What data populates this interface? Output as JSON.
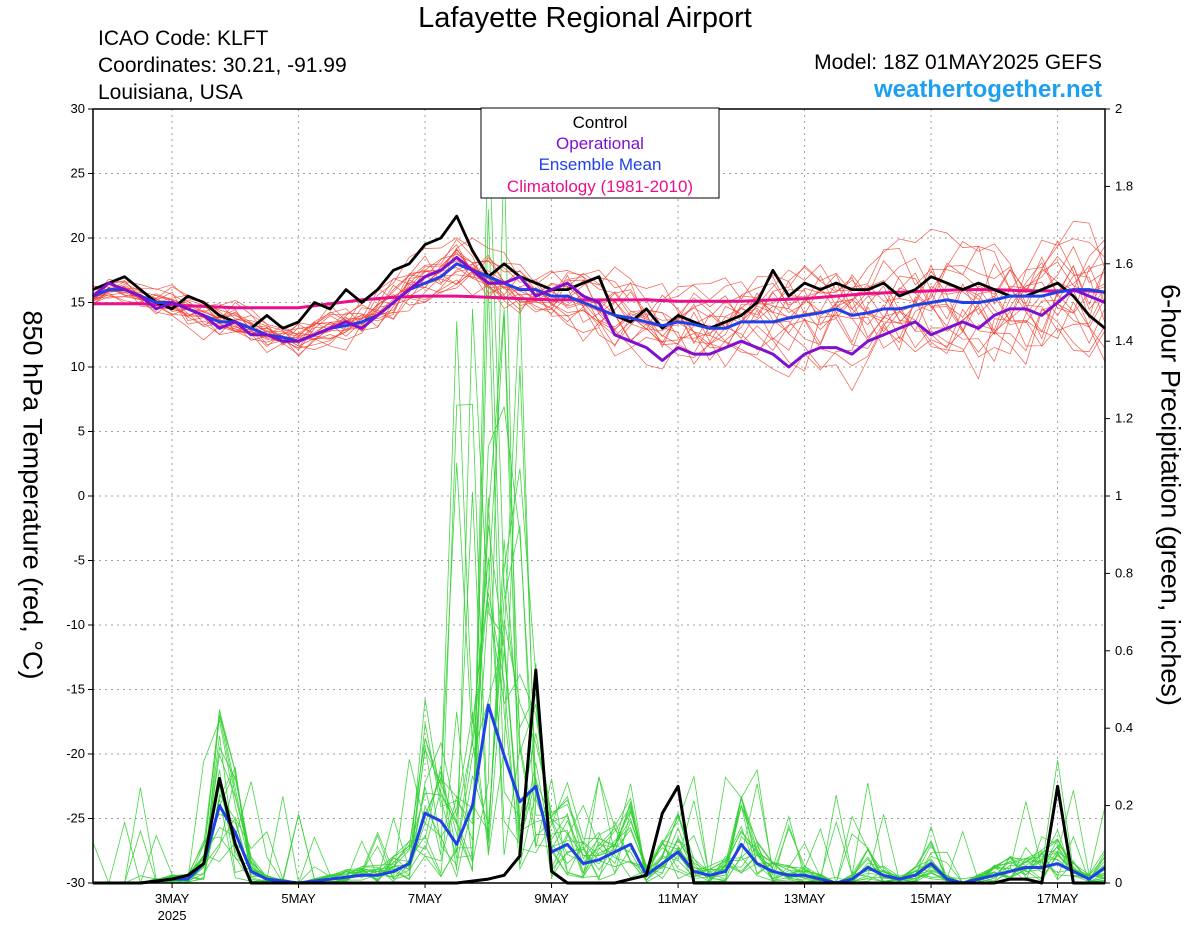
{
  "header": {
    "title": "Lafayette Regional Airport",
    "icao": "ICAO Code: KLFT",
    "coords": "Coordinates: 30.21, -91.99",
    "location": "Louisiana, USA",
    "model": "Model: 18Z 01MAY2025 GEFS",
    "site": "weathertogether.net"
  },
  "colors": {
    "members_temp": "#f04030",
    "members_precip": "#33d033",
    "control": "#000000",
    "operational": "#8010d0",
    "mean": "#2040e8",
    "climatology": "#e8108c",
    "site": "#1e9ff0"
  },
  "chart_data": {
    "type": "line",
    "title": "Lafayette Regional Airport",
    "ylabel": "850 hPa Temperature (red, °C)",
    "y2label": "6-hour Precipitation (green, inches)",
    "ylim": [
      -30,
      30
    ],
    "y2lim": [
      0,
      2
    ],
    "xlim": [
      1.75,
      17.75
    ],
    "grid": true,
    "yticks": [
      "30",
      "25",
      "20",
      "15",
      "10",
      "5",
      "0",
      "-5",
      "-10",
      "-15",
      "-20",
      "-25",
      "-30"
    ],
    "y2ticks": [
      "2",
      "1.8",
      "1.6",
      "1.4",
      "1.2",
      "1",
      "0.8",
      "0.6",
      "0.4",
      "0.2",
      "0"
    ],
    "xticks": [
      {
        "x": 3,
        "label": "3MAY",
        "sub": "2025"
      },
      {
        "x": 5,
        "label": "5MAY",
        "sub": ""
      },
      {
        "x": 7,
        "label": "7MAY",
        "sub": ""
      },
      {
        "x": 9,
        "label": "9MAY",
        "sub": ""
      },
      {
        "x": 11,
        "label": "11MAY",
        "sub": ""
      },
      {
        "x": 13,
        "label": "13MAY",
        "sub": ""
      },
      {
        "x": 15,
        "label": "15MAY",
        "sub": ""
      },
      {
        "x": 17,
        "label": "17MAY",
        "sub": ""
      }
    ],
    "legend": {
      "placement": "top-center",
      "entries": [
        {
          "name": "Control",
          "color": "#000000"
        },
        {
          "name": "Operational",
          "color": "#8010d0"
        },
        {
          "name": "Ensemble Mean",
          "color": "#2040e8"
        },
        {
          "name": "Climatology (1981-2010)",
          "color": "#e8108c"
        }
      ]
    },
    "temperature": {
      "control": [
        [
          1.75,
          16
        ],
        [
          2,
          16.5
        ],
        [
          2.25,
          17
        ],
        [
          2.5,
          16
        ],
        [
          2.75,
          15
        ],
        [
          3,
          14.5
        ],
        [
          3.25,
          15.5
        ],
        [
          3.5,
          15
        ],
        [
          3.75,
          14
        ],
        [
          4,
          13.5
        ],
        [
          4.25,
          13
        ],
        [
          4.5,
          14
        ],
        [
          4.75,
          13
        ],
        [
          5,
          13.5
        ],
        [
          5.25,
          15
        ],
        [
          5.5,
          14.5
        ],
        [
          5.75,
          16
        ],
        [
          6,
          15
        ],
        [
          6.25,
          16
        ],
        [
          6.5,
          17.5
        ],
        [
          6.75,
          18
        ],
        [
          7,
          19.5
        ],
        [
          7.25,
          20
        ],
        [
          7.5,
          21.7
        ],
        [
          7.75,
          19
        ],
        [
          8,
          17
        ],
        [
          8.25,
          18
        ],
        [
          8.5,
          17
        ],
        [
          8.75,
          16.5
        ],
        [
          9,
          16
        ],
        [
          9.25,
          16
        ],
        [
          9.5,
          16.5
        ],
        [
          9.75,
          17
        ],
        [
          10,
          14
        ],
        [
          10.25,
          13.5
        ],
        [
          10.5,
          14.5
        ],
        [
          10.75,
          13
        ],
        [
          11,
          14
        ],
        [
          11.25,
          13.5
        ],
        [
          11.5,
          13
        ],
        [
          11.75,
          13.5
        ],
        [
          12,
          14
        ],
        [
          12.25,
          15
        ],
        [
          12.5,
          17.5
        ],
        [
          12.75,
          15.5
        ],
        [
          13,
          16.5
        ],
        [
          13.25,
          16
        ],
        [
          13.5,
          16.5
        ],
        [
          13.75,
          16
        ],
        [
          14,
          16
        ],
        [
          14.25,
          16.5
        ],
        [
          14.5,
          15.5
        ],
        [
          14.75,
          16
        ],
        [
          15,
          17
        ],
        [
          15.25,
          16.5
        ],
        [
          15.5,
          16
        ],
        [
          15.75,
          16.5
        ],
        [
          16,
          16
        ],
        [
          16.25,
          15.5
        ],
        [
          16.5,
          15.5
        ],
        [
          16.75,
          16
        ],
        [
          17,
          16.5
        ],
        [
          17.25,
          15.5
        ],
        [
          17.5,
          14
        ],
        [
          17.75,
          13
        ]
      ],
      "operational": [
        [
          1.75,
          15.5
        ],
        [
          2,
          16.5
        ],
        [
          2.25,
          16
        ],
        [
          2.5,
          15.5
        ],
        [
          2.75,
          14.5
        ],
        [
          3,
          15
        ],
        [
          3.25,
          14.5
        ],
        [
          3.5,
          14
        ],
        [
          3.75,
          13
        ],
        [
          4,
          13.5
        ],
        [
          4.25,
          12.5
        ],
        [
          4.5,
          12.5
        ],
        [
          4.75,
          12
        ],
        [
          5,
          12
        ],
        [
          5.25,
          12.5
        ],
        [
          5.5,
          13
        ],
        [
          5.75,
          13.5
        ],
        [
          6,
          13
        ],
        [
          6.25,
          14
        ],
        [
          6.5,
          15
        ],
        [
          6.75,
          16
        ],
        [
          7,
          17
        ],
        [
          7.25,
          17.5
        ],
        [
          7.5,
          18.5
        ],
        [
          7.75,
          17.5
        ],
        [
          8,
          16.5
        ],
        [
          8.25,
          16.5
        ],
        [
          8.5,
          17
        ],
        [
          8.75,
          15.5
        ],
        [
          9,
          16
        ],
        [
          9.25,
          16.5
        ],
        [
          9.5,
          15.5
        ],
        [
          9.75,
          15
        ],
        [
          10,
          12.5
        ],
        [
          10.25,
          12
        ],
        [
          10.5,
          11.5
        ],
        [
          10.75,
          10.5
        ],
        [
          11,
          11.5
        ],
        [
          11.25,
          11
        ],
        [
          11.5,
          11
        ],
        [
          11.75,
          11.5
        ],
        [
          12,
          12
        ],
        [
          12.25,
          11.5
        ],
        [
          12.5,
          11
        ],
        [
          12.75,
          10
        ],
        [
          13,
          11
        ],
        [
          13.25,
          11.5
        ],
        [
          13.5,
          11.5
        ],
        [
          13.75,
          11
        ],
        [
          14,
          12
        ],
        [
          14.25,
          12.5
        ],
        [
          14.5,
          13
        ],
        [
          14.75,
          13.5
        ],
        [
          15,
          12.5
        ],
        [
          15.25,
          13
        ],
        [
          15.5,
          13.5
        ],
        [
          15.75,
          13
        ],
        [
          16,
          14
        ],
        [
          16.25,
          14.5
        ],
        [
          16.5,
          14.5
        ],
        [
          16.75,
          14
        ],
        [
          17,
          15
        ],
        [
          17.25,
          16
        ],
        [
          17.5,
          15.5
        ],
        [
          17.75,
          15
        ]
      ],
      "mean": [
        [
          1.75,
          15.5
        ],
        [
          2,
          16
        ],
        [
          2.25,
          16
        ],
        [
          2.5,
          15.5
        ],
        [
          2.75,
          15
        ],
        [
          3,
          15
        ],
        [
          3.25,
          14.5
        ],
        [
          3.5,
          14
        ],
        [
          3.75,
          13.5
        ],
        [
          4,
          13.5
        ],
        [
          4.25,
          13
        ],
        [
          4.5,
          12.5
        ],
        [
          4.75,
          12.3
        ],
        [
          5,
          12
        ],
        [
          5.25,
          12.5
        ],
        [
          5.5,
          13
        ],
        [
          5.75,
          13.2
        ],
        [
          6,
          13.5
        ],
        [
          6.25,
          14
        ],
        [
          6.5,
          15
        ],
        [
          6.75,
          16
        ],
        [
          7,
          16.5
        ],
        [
          7.25,
          17
        ],
        [
          7.5,
          18
        ],
        [
          7.75,
          17.5
        ],
        [
          8,
          17
        ],
        [
          8.25,
          16.5
        ],
        [
          8.5,
          16
        ],
        [
          8.75,
          16
        ],
        [
          9,
          15.5
        ],
        [
          9.25,
          15.5
        ],
        [
          9.5,
          15
        ],
        [
          9.75,
          14.5
        ],
        [
          10,
          14
        ],
        [
          10.25,
          13.8
        ],
        [
          10.5,
          13.5
        ],
        [
          10.75,
          13.2
        ],
        [
          11,
          13.5
        ],
        [
          11.25,
          13.3
        ],
        [
          11.5,
          13
        ],
        [
          11.75,
          13
        ],
        [
          12,
          13.5
        ],
        [
          12.25,
          13.5
        ],
        [
          12.5,
          13.5
        ],
        [
          12.75,
          13.8
        ],
        [
          13,
          14
        ],
        [
          13.25,
          14.2
        ],
        [
          13.5,
          14.5
        ],
        [
          13.75,
          14
        ],
        [
          14,
          14.2
        ],
        [
          14.25,
          14.5
        ],
        [
          14.5,
          14.5
        ],
        [
          14.75,
          14.8
        ],
        [
          15,
          15
        ],
        [
          15.25,
          15.2
        ],
        [
          15.5,
          15
        ],
        [
          15.75,
          15
        ],
        [
          16,
          15.2
        ],
        [
          16.25,
          15.5
        ],
        [
          16.5,
          15.5
        ],
        [
          16.75,
          15.5
        ],
        [
          17,
          15.8
        ],
        [
          17.25,
          16
        ],
        [
          17.5,
          16
        ],
        [
          17.75,
          15.8
        ]
      ],
      "climatology": [
        [
          1.75,
          14.9
        ],
        [
          2.5,
          14.9
        ],
        [
          3,
          14.8
        ],
        [
          3.5,
          14.7
        ],
        [
          4,
          14.6
        ],
        [
          4.5,
          14.6
        ],
        [
          5,
          14.6
        ],
        [
          5.5,
          14.9
        ],
        [
          6,
          15.2
        ],
        [
          6.5,
          15.4
        ],
        [
          7,
          15.5
        ],
        [
          7.5,
          15.5
        ],
        [
          8,
          15.4
        ],
        [
          8.5,
          15.3
        ],
        [
          9,
          15.2
        ],
        [
          9.5,
          15.2
        ],
        [
          10,
          15.2
        ],
        [
          10.5,
          15.2
        ],
        [
          11,
          15.1
        ],
        [
          11.5,
          15.1
        ],
        [
          12,
          15.1
        ],
        [
          12.5,
          15.2
        ],
        [
          13,
          15.3
        ],
        [
          13.5,
          15.5
        ],
        [
          14,
          15.7
        ],
        [
          14.5,
          15.8
        ],
        [
          15,
          15.9
        ],
        [
          15.5,
          16
        ],
        [
          16,
          16
        ],
        [
          16.5,
          15.9
        ],
        [
          17,
          15.9
        ],
        [
          17.5,
          15.9
        ],
        [
          17.75,
          15.8
        ]
      ]
    },
    "precipitation": {
      "control": [
        [
          1.75,
          0
        ],
        [
          2.5,
          0
        ],
        [
          3,
          0.01
        ],
        [
          3.25,
          0.02
        ],
        [
          3.5,
          0.05
        ],
        [
          3.75,
          0.27
        ],
        [
          4,
          0.1
        ],
        [
          4.25,
          0
        ],
        [
          5,
          0
        ],
        [
          6,
          0
        ],
        [
          7,
          0
        ],
        [
          7.5,
          0
        ],
        [
          8,
          0.01
        ],
        [
          8.25,
          0.02
        ],
        [
          8.5,
          0.07
        ],
        [
          8.75,
          0.55
        ],
        [
          9,
          0.03
        ],
        [
          9.25,
          0
        ],
        [
          10,
          0
        ],
        [
          10.5,
          0.02
        ],
        [
          10.75,
          0.18
        ],
        [
          11,
          0.25
        ],
        [
          11.25,
          0
        ],
        [
          12,
          0
        ],
        [
          13,
          0
        ],
        [
          14,
          0
        ],
        [
          15,
          0
        ],
        [
          16,
          0
        ],
        [
          16.25,
          0.01
        ],
        [
          16.5,
          0.01
        ],
        [
          16.75,
          0
        ],
        [
          17,
          0.25
        ],
        [
          17.25,
          0
        ],
        [
          17.75,
          0
        ]
      ],
      "mean": [
        [
          1.75,
          0
        ],
        [
          2.5,
          0
        ],
        [
          3,
          0.01
        ],
        [
          3.25,
          0.01
        ],
        [
          3.5,
          0.05
        ],
        [
          3.75,
          0.2
        ],
        [
          4,
          0.13
        ],
        [
          4.25,
          0.03
        ],
        [
          4.5,
          0.01
        ],
        [
          5,
          0
        ],
        [
          6,
          0.02
        ],
        [
          6.25,
          0.02
        ],
        [
          6.5,
          0.03
        ],
        [
          6.75,
          0.05
        ],
        [
          7,
          0.18
        ],
        [
          7.25,
          0.16
        ],
        [
          7.5,
          0.1
        ],
        [
          7.75,
          0.2
        ],
        [
          8,
          0.46
        ],
        [
          8.25,
          0.33
        ],
        [
          8.5,
          0.21
        ],
        [
          8.75,
          0.25
        ],
        [
          9,
          0.08
        ],
        [
          9.25,
          0.1
        ],
        [
          9.5,
          0.05
        ],
        [
          9.75,
          0.06
        ],
        [
          10,
          0.08
        ],
        [
          10.25,
          0.1
        ],
        [
          10.5,
          0.02
        ],
        [
          10.75,
          0.05
        ],
        [
          11,
          0.08
        ],
        [
          11.25,
          0.03
        ],
        [
          11.5,
          0.02
        ],
        [
          11.75,
          0.03
        ],
        [
          12,
          0.1
        ],
        [
          12.25,
          0.05
        ],
        [
          12.5,
          0.03
        ],
        [
          12.75,
          0.02
        ],
        [
          13,
          0.02
        ],
        [
          13.25,
          0.01
        ],
        [
          13.5,
          0
        ],
        [
          13.75,
          0.01
        ],
        [
          14,
          0.04
        ],
        [
          14.25,
          0.02
        ],
        [
          14.5,
          0.01
        ],
        [
          14.75,
          0.02
        ],
        [
          15,
          0.05
        ],
        [
          15.25,
          0.01
        ],
        [
          15.5,
          0
        ],
        [
          15.75,
          0.01
        ],
        [
          16,
          0.02
        ],
        [
          16.25,
          0.03
        ],
        [
          16.5,
          0.04
        ],
        [
          16.75,
          0.04
        ],
        [
          17,
          0.05
        ],
        [
          17.25,
          0.03
        ],
        [
          17.5,
          0.01
        ],
        [
          17.75,
          0.04
        ]
      ]
    }
  }
}
